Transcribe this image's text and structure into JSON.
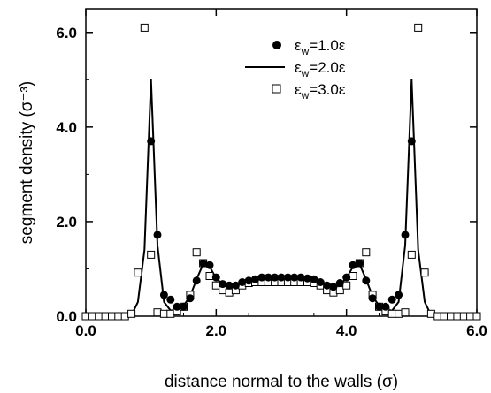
{
  "chart_data": {
    "type": "scatter",
    "xlabel": "distance normal to the walls (σ)",
    "ylabel": "segment density (σ⁻³)",
    "xlim": [
      0.0,
      6.0
    ],
    "ylim": [
      0.0,
      6.5
    ],
    "xticks": [
      0.0,
      2.0,
      4.0,
      6.0
    ],
    "xtick_labels": [
      "0.0",
      "2.0",
      "4.0",
      "6.0"
    ],
    "yticks": [
      0.0,
      2.0,
      4.0,
      6.0
    ],
    "ytick_labels": [
      "0.0",
      "2.0",
      "4.0",
      "6.0"
    ],
    "legend_position": "top-right",
    "grid": false,
    "series": [
      {
        "name": "εw=1.0ε",
        "legend_main": "ε",
        "legend_sub": "w",
        "legend_tail": "=1.0ε",
        "style": "filled-circle",
        "x": [
          1.0,
          1.1,
          1.2,
          1.3,
          1.4,
          1.5,
          1.6,
          1.7,
          1.8,
          1.9,
          2.0,
          2.1,
          2.2,
          2.3,
          2.4,
          2.5,
          2.6,
          2.7,
          2.8,
          2.9,
          3.0,
          3.1,
          3.2,
          3.3,
          3.4,
          3.5,
          3.6,
          3.7,
          3.8,
          3.9,
          4.0,
          4.1,
          4.2,
          4.3,
          4.4,
          4.5,
          4.6,
          4.7,
          4.8,
          4.9,
          5.0
        ],
        "y": [
          3.7,
          1.72,
          0.45,
          0.35,
          0.2,
          0.2,
          0.38,
          0.75,
          1.12,
          1.08,
          0.82,
          0.68,
          0.65,
          0.65,
          0.72,
          0.75,
          0.78,
          0.82,
          0.82,
          0.82,
          0.82,
          0.82,
          0.82,
          0.82,
          0.8,
          0.78,
          0.72,
          0.65,
          0.62,
          0.7,
          0.82,
          1.08,
          1.12,
          0.75,
          0.38,
          0.2,
          0.2,
          0.35,
          0.45,
          1.72,
          3.7
        ]
      },
      {
        "name": "εw=2.0ε",
        "legend_main": "ε",
        "legend_sub": "w",
        "legend_tail": "=2.0ε",
        "style": "solid-line",
        "x": [
          0.7,
          0.8,
          0.9,
          1.0,
          1.1,
          1.2,
          1.3,
          1.4,
          1.5,
          1.6,
          1.7,
          1.8,
          1.9,
          2.0,
          2.1,
          2.2,
          2.3,
          2.4,
          2.5,
          2.6,
          2.7,
          2.8,
          2.9,
          3.0,
          3.1,
          3.2,
          3.3,
          3.4,
          3.5,
          3.6,
          3.7,
          3.8,
          3.9,
          4.0,
          4.1,
          4.2,
          4.3,
          4.4,
          4.5,
          4.6,
          4.7,
          4.8,
          4.9,
          5.0,
          5.1,
          5.2,
          5.3
        ],
        "y": [
          0.02,
          0.3,
          1.4,
          5.0,
          1.5,
          0.3,
          0.12,
          0.14,
          0.22,
          0.42,
          0.78,
          1.1,
          1.05,
          0.8,
          0.68,
          0.62,
          0.64,
          0.7,
          0.74,
          0.77,
          0.78,
          0.78,
          0.78,
          0.78,
          0.78,
          0.78,
          0.78,
          0.77,
          0.74,
          0.7,
          0.64,
          0.62,
          0.68,
          0.8,
          1.05,
          1.1,
          0.78,
          0.42,
          0.22,
          0.14,
          0.12,
          0.3,
          1.5,
          5.0,
          1.4,
          0.3,
          0.02
        ]
      },
      {
        "name": "εw=3.0ε",
        "legend_main": "ε",
        "legend_sub": "w",
        "legend_tail": "=3.0ε",
        "style": "open-square",
        "x": [
          0.0,
          0.1,
          0.2,
          0.3,
          0.4,
          0.5,
          0.6,
          0.7,
          0.8,
          0.9,
          1.0,
          1.1,
          1.2,
          1.3,
          1.4,
          1.5,
          1.6,
          1.7,
          1.8,
          1.9,
          2.0,
          2.1,
          2.2,
          2.3,
          2.4,
          2.5,
          2.6,
          2.7,
          2.8,
          2.9,
          3.0,
          3.1,
          3.2,
          3.3,
          3.4,
          3.5,
          3.6,
          3.7,
          3.8,
          3.9,
          4.0,
          4.1,
          4.2,
          4.3,
          4.4,
          4.5,
          4.6,
          4.7,
          4.8,
          4.9,
          5.0,
          5.1,
          5.2,
          5.3,
          5.4,
          5.5,
          5.6,
          5.7,
          5.8,
          5.9,
          6.0
        ],
        "y": [
          0.0,
          0.0,
          0.0,
          0.0,
          0.0,
          0.0,
          0.0,
          0.05,
          0.92,
          6.1,
          1.3,
          0.08,
          0.05,
          0.05,
          0.1,
          0.2,
          0.45,
          1.35,
          1.12,
          0.85,
          0.65,
          0.55,
          0.5,
          0.55,
          0.65,
          0.7,
          0.72,
          0.72,
          0.72,
          0.72,
          0.72,
          0.72,
          0.72,
          0.72,
          0.72,
          0.7,
          0.65,
          0.55,
          0.5,
          0.55,
          0.65,
          0.85,
          1.12,
          1.35,
          0.45,
          0.2,
          0.1,
          0.05,
          0.05,
          0.08,
          1.3,
          6.1,
          0.92,
          0.05,
          0.0,
          0.0,
          0.0,
          0.0,
          0.0,
          0.0,
          0.0
        ]
      }
    ]
  }
}
